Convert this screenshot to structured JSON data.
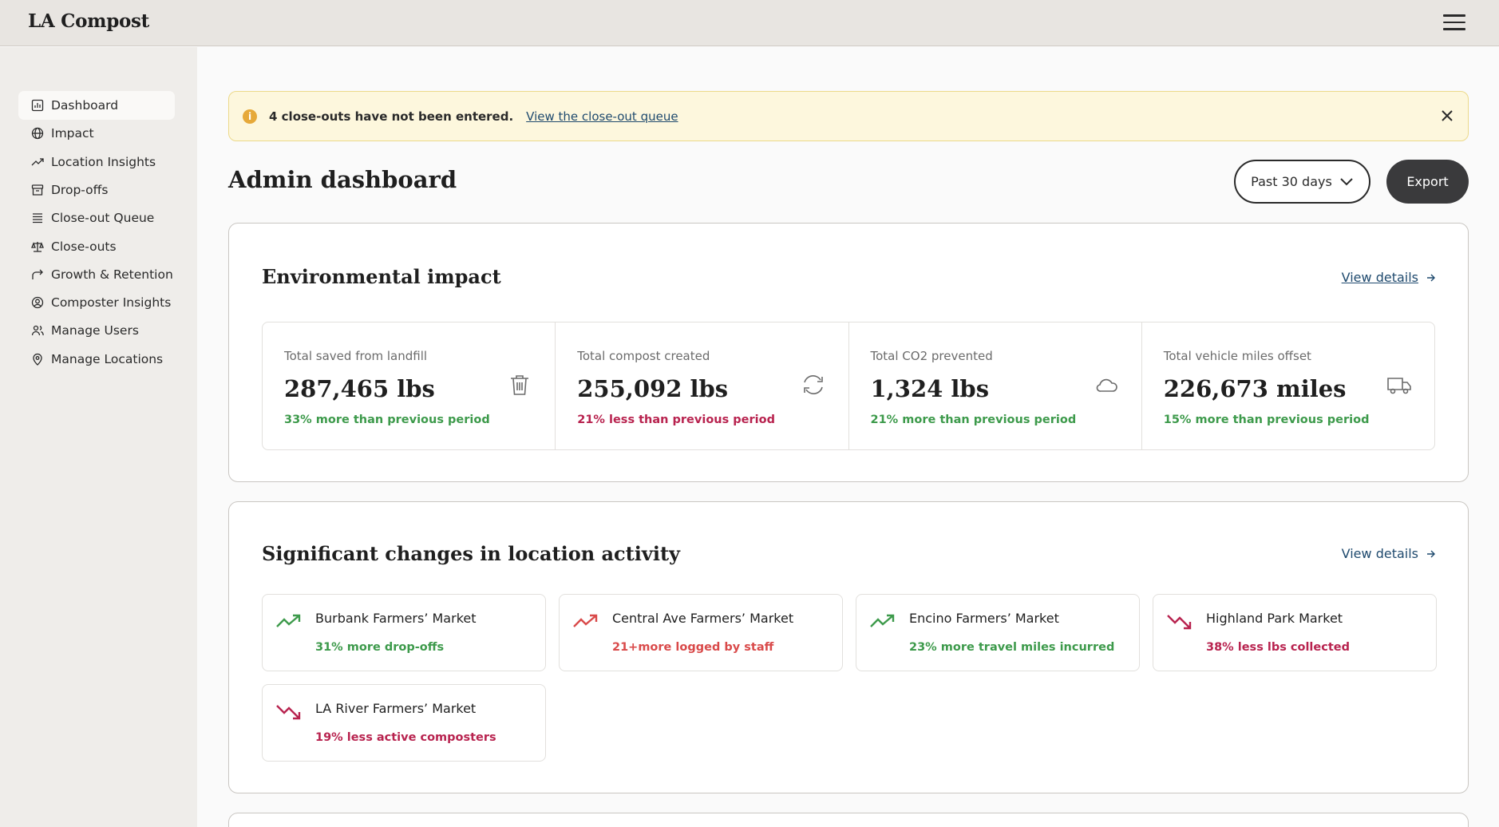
{
  "app": {
    "logo": "LA Compost"
  },
  "sidebar": {
    "items": [
      {
        "label": "Dashboard",
        "icon": "chart-icon",
        "active": true
      },
      {
        "label": "Impact",
        "icon": "globe-icon"
      },
      {
        "label": "Location Insights",
        "icon": "trending-up-icon"
      },
      {
        "label": "Drop-offs",
        "icon": "archive-icon"
      },
      {
        "label": "Close-out Queue",
        "icon": "list-icon"
      },
      {
        "label": "Close-outs",
        "icon": "scale-icon"
      },
      {
        "label": "Growth & Retention",
        "icon": "share-arrow-icon"
      },
      {
        "label": "Composter Insights",
        "icon": "user-circle-icon"
      },
      {
        "label": "Manage Users",
        "icon": "users-icon"
      },
      {
        "label": "Manage Locations",
        "icon": "map-pin-icon"
      }
    ]
  },
  "alert": {
    "message": "4 close-outs have not been entered.",
    "link": "View the close-out queue",
    "color": "#fdf7dd"
  },
  "header": {
    "title": "Admin dashboard",
    "range": "Past 30 days",
    "export": "Export"
  },
  "impact": {
    "title": "Environmental impact",
    "view_details": "View details",
    "stats": [
      {
        "label": "Total saved from landfill",
        "value": "287,465 lbs",
        "delta": "33% more than previous period",
        "trend": "up",
        "icon": "trash-icon"
      },
      {
        "label": "Total compost created",
        "value": "255,092 lbs",
        "delta": "21% less than previous period",
        "trend": "down",
        "icon": "refresh-icon"
      },
      {
        "label": "Total CO2 prevented",
        "value": "1,324 lbs",
        "delta": "21% more than previous period",
        "trend": "up",
        "icon": "cloud-icon"
      },
      {
        "label": "Total vehicle miles offset",
        "value": "226,673 miles",
        "delta": "15% more than previous period",
        "trend": "up",
        "icon": "truck-icon"
      }
    ]
  },
  "changes": {
    "title": "Significant changes in location activity",
    "view_details": "View details",
    "locations": [
      {
        "name": "Burbank Farmers’ Market",
        "change": "31% more drop-offs",
        "trend": "up"
      },
      {
        "name": "Central Ave Farmers’ Market",
        "change": "21+more logged by staff",
        "trend": "warn"
      },
      {
        "name": "Encino Farmers’ Market",
        "change": "23% more travel miles incurred",
        "trend": "up"
      },
      {
        "name": "Highland Park Market",
        "change": "38% less lbs collected",
        "trend": "down"
      },
      {
        "name": "LA River Farmers’ Market",
        "change": "19% less active composters",
        "trend": "down"
      }
    ]
  },
  "colors": {
    "up": "#3d9a4b",
    "down": "#b8234f",
    "warn": "#d94a4a",
    "accent": "#1f4a6e"
  }
}
